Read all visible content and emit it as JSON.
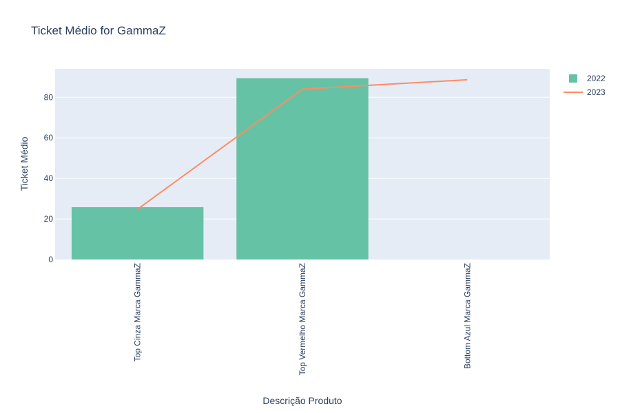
{
  "chart_data": {
    "type": "bar",
    "title": "Ticket Médio for GammaZ",
    "xlabel": "Descrição Produto",
    "ylabel": "Ticket Médio",
    "categories": [
      "Top Cinza Marca GammaZ",
      "Top Vermelho Marca GammaZ",
      "Bottom Azul Marca GammaZ"
    ],
    "ylim": [
      0,
      94
    ],
    "yticks": [
      0,
      20,
      40,
      60,
      80
    ],
    "grid": true,
    "legend_position": "top-right",
    "series": [
      {
        "name": "2022",
        "type": "bar",
        "color": "#66c2a5",
        "values": [
          25.8,
          89.4,
          null
        ]
      },
      {
        "name": "2023",
        "type": "line",
        "color": "#fc8d62",
        "values": [
          24.8,
          84.0,
          88.6
        ]
      }
    ]
  },
  "colors": {
    "plot_background": "#e5ecf6",
    "gridline": "#ffffff",
    "text": "#2a3f5f"
  }
}
